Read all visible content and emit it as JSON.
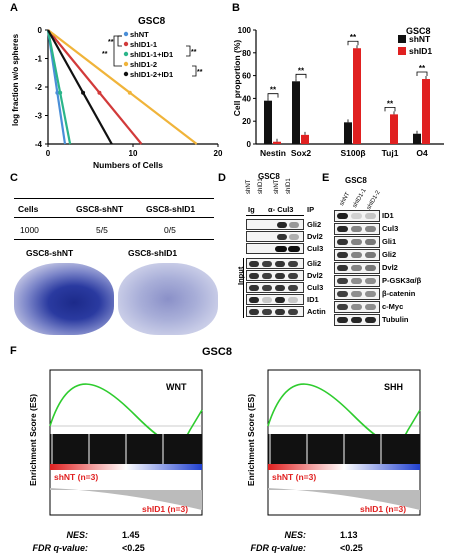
{
  "panel_labels": {
    "A": "A",
    "B": "B",
    "C": "C",
    "D": "D",
    "E": "E",
    "F": "F"
  },
  "panelA": {
    "title": "GSC8",
    "ylabel": "log fraction w/o spheres",
    "xlabel": "Numbers of Cells",
    "sig_marks": [
      "**",
      "**",
      "**",
      "**"
    ],
    "legend": [
      {
        "name": "shNT",
        "color": "#4a8fd8"
      },
      {
        "name": "shID1-1",
        "color": "#d23a3a"
      },
      {
        "name": "shID1-1+ID1",
        "color": "#2bb58a"
      },
      {
        "name": "shID1-2",
        "color": "#f0b43a"
      },
      {
        "name": "shID1-2+ID1",
        "color": "#111111"
      }
    ]
  },
  "panelB": {
    "title": "GSC8",
    "legend": [
      {
        "name": "shNT",
        "color": "#111111"
      },
      {
        "name": "shID1",
        "color": "#e02020"
      }
    ],
    "sig": "**"
  },
  "panelC": {
    "header": [
      "Cells",
      "GSC8-shNT",
      "GSC8-shID1"
    ],
    "row": [
      "1000",
      "5/5",
      "0/5"
    ],
    "img_labels": [
      "GSC8-shNT",
      "GSC8-shID1"
    ]
  },
  "panelD": {
    "title": "GSC8",
    "lanes": [
      "shNT",
      "shID1",
      "shNT",
      "shID1"
    ],
    "ig": "Ig",
    "ab": "α- Cul3",
    "ip": "IP",
    "input": "Input",
    "ip_rows": [
      "Gli2",
      "Dvl2",
      "Cul3"
    ],
    "input_rows": [
      "Gli2",
      "Dvl2",
      "Cul3",
      "ID1",
      "Actin"
    ]
  },
  "panelE": {
    "title": "GSC8",
    "lanes": [
      "shNT",
      "shID1-1",
      "shID1-2"
    ],
    "rows": [
      "ID1",
      "Cul3",
      "Gli1",
      "Gli2",
      "Dvl2",
      "P-GSK3α/β",
      "β-catenin",
      "c-Myc",
      "Tubulin"
    ]
  },
  "panelF": {
    "title": "GSC8",
    "ylabel": "Enrichment Score (ES)",
    "plots": [
      {
        "name": "WNT",
        "shNT": "shNT (n=3)",
        "shID1": "shID1 (n=3)",
        "nes_label": "NES:",
        "nes": "1.45",
        "fdr_label": "FDR q-value:",
        "fdr": "<0.25"
      },
      {
        "name": "SHH",
        "shNT": "shNT (n=3)",
        "shID1": "shID1 (n=3)",
        "nes_label": "NES:",
        "nes": "1.13",
        "fdr_label": "FDR q-value:",
        "fdr": "<0.25"
      }
    ]
  },
  "chart_data": [
    {
      "type": "line",
      "title": "GSC8",
      "xlabel": "Numbers of Cells",
      "ylabel": "log fraction w/o spheres",
      "xlim": [
        0,
        20
      ],
      "ylim": [
        -4,
        0
      ],
      "xticks": [
        0,
        10,
        20
      ],
      "yticks": [
        0,
        -1,
        -2,
        -3,
        -4
      ],
      "series": [
        {
          "name": "shNT",
          "color": "#4a8fd8",
          "x": [
            0,
            2
          ],
          "y": [
            0,
            -4
          ]
        },
        {
          "name": "shID1-1",
          "color": "#d23a3a",
          "x": [
            0,
            11
          ],
          "y": [
            0,
            -4
          ]
        },
        {
          "name": "shID1-1+ID1",
          "color": "#2bb58a",
          "x": [
            0,
            2.6
          ],
          "y": [
            0,
            -4
          ]
        },
        {
          "name": "shID1-2",
          "color": "#f0b43a",
          "x": [
            0,
            17.5
          ],
          "y": [
            0,
            -4
          ]
        },
        {
          "name": "shID1-2+ID1",
          "color": "#111111",
          "x": [
            0,
            7.5
          ],
          "y": [
            0,
            -4
          ]
        }
      ]
    },
    {
      "type": "bar",
      "title": "GSC8",
      "ylabel": "Cell proportion (%)",
      "ylim": [
        0,
        100
      ],
      "yticks": [
        0,
        20,
        40,
        60,
        80,
        100
      ],
      "categories": [
        "Nestin",
        "Sox2",
        "S100β",
        "Tuj1",
        "O4"
      ],
      "series": [
        {
          "name": "shNT",
          "color": "#111111",
          "values": [
            38,
            55,
            19,
            0,
            9
          ]
        },
        {
          "name": "shID1",
          "color": "#e02020",
          "values": [
            2,
            8,
            84,
            26,
            57
          ]
        }
      ]
    }
  ]
}
